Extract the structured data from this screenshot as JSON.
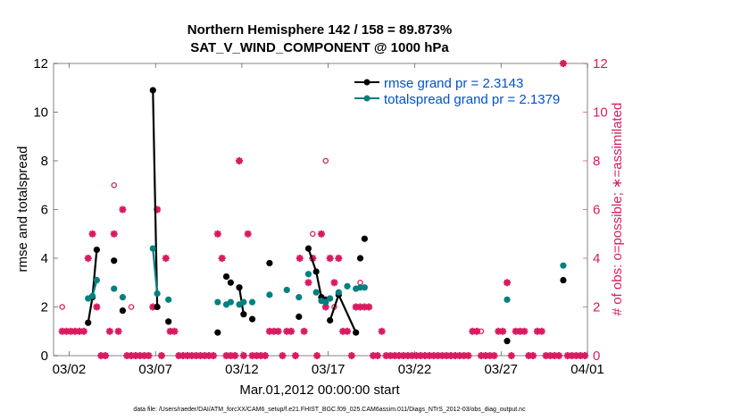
{
  "chart_data": {
    "type": "line",
    "title_line1": "Northern Hemisphere 142 / 158 = 89.873%",
    "title_line2": "SAT_V_WIND_COMPONENT @ 1000 hPa",
    "xlabel": "Mar.01,2012 00:00:00 start",
    "ylabel_left": "rmse and totalspread",
    "ylabel_right": "# of obs: o=possible; ∗=assimilated",
    "footer": "data file: /Users/raeder/DAI/ATM_forcXX/CAM6_setup/f.e21.FHIST_BGC.f09_025.CAM6assim.011/Diags_NTrS_2012-03/obs_diag_output.nc",
    "x_range_days": [
      1.1,
      32.0
    ],
    "ylim": [
      0,
      12
    ],
    "x_ticks": [
      {
        "day": 2,
        "label": "03/02"
      },
      {
        "day": 7,
        "label": "03/07"
      },
      {
        "day": 12,
        "label": "03/12"
      },
      {
        "day": 17,
        "label": "03/17"
      },
      {
        "day": 22,
        "label": "03/22"
      },
      {
        "day": 27,
        "label": "03/27"
      },
      {
        "day": 32,
        "label": "04/01"
      }
    ],
    "y_ticks_left": [
      "0",
      "2",
      "4",
      "6",
      "8",
      "10",
      "12"
    ],
    "y_ticks_right": [
      "0",
      "2",
      "4",
      "6",
      "8",
      "10",
      "12"
    ],
    "colors": {
      "rmse": "#000000",
      "spread": "#008080",
      "obs": "#d81b60",
      "legend_text": "#0052cc"
    },
    "series": [
      {
        "name": "rmse grand pr = 2.3143",
        "key": "rmse",
        "points": [
          [
            3.1,
            1.35
          ],
          [
            3.35,
            2.4
          ],
          [
            3.6,
            4.35
          ],
          [
            4.6,
            3.9
          ],
          [
            5.1,
            1.85
          ],
          [
            6.85,
            10.9
          ],
          [
            7.1,
            2.0
          ],
          [
            7.75,
            1.4
          ],
          [
            10.6,
            0.95
          ],
          [
            11.1,
            3.25
          ],
          [
            11.35,
            3.0
          ],
          [
            11.85,
            2.8
          ],
          [
            12.1,
            1.7
          ],
          [
            12.6,
            1.5
          ],
          [
            13.6,
            3.8
          ],
          [
            15.3,
            1.6
          ],
          [
            15.85,
            4.4
          ],
          [
            16.3,
            3.45
          ],
          [
            16.6,
            2.4
          ],
          [
            16.85,
            2.3
          ],
          [
            17.1,
            1.45
          ],
          [
            17.6,
            2.5
          ],
          [
            18.6,
            0.95
          ],
          [
            18.85,
            4.0
          ],
          [
            19.1,
            4.8
          ],
          [
            27.35,
            0.6
          ],
          [
            30.6,
            3.1
          ]
        ],
        "segments": [
          [
            0,
            1,
            2
          ],
          [
            5,
            6
          ],
          [
            11,
            12
          ],
          [
            16,
            17,
            18
          ],
          [
            20,
            21,
            22
          ]
        ]
      },
      {
        "name": "totalspread grand pr = 2.1379",
        "key": "spread",
        "points": [
          [
            3.1,
            2.35
          ],
          [
            3.35,
            2.45
          ],
          [
            3.6,
            3.1
          ],
          [
            4.6,
            2.75
          ],
          [
            5.1,
            2.4
          ],
          [
            6.85,
            4.4
          ],
          [
            7.1,
            2.55
          ],
          [
            7.75,
            2.3
          ],
          [
            10.6,
            2.2
          ],
          [
            11.1,
            2.1
          ],
          [
            11.35,
            2.2
          ],
          [
            11.85,
            2.1
          ],
          [
            12.1,
            2.2
          ],
          [
            12.6,
            2.2
          ],
          [
            13.6,
            2.5
          ],
          [
            14.6,
            2.7
          ],
          [
            15.3,
            2.4
          ],
          [
            15.85,
            3.35
          ],
          [
            16.3,
            2.6
          ],
          [
            16.6,
            2.25
          ],
          [
            16.85,
            2.2
          ],
          [
            17.1,
            2.35
          ],
          [
            17.6,
            2.6
          ],
          [
            18.1,
            2.85
          ],
          [
            18.6,
            2.75
          ],
          [
            18.85,
            2.8
          ],
          [
            19.1,
            2.8
          ],
          [
            27.35,
            2.3
          ],
          [
            30.6,
            3.7
          ]
        ],
        "segments": [
          [
            0,
            1,
            2
          ],
          [
            5,
            6
          ],
          [
            11,
            12
          ],
          [
            19,
            20,
            21
          ],
          [
            24,
            25,
            26
          ]
        ]
      }
    ],
    "obs_assimilated": [
      [
        1.6,
        1
      ],
      [
        1.85,
        1
      ],
      [
        2.1,
        1
      ],
      [
        2.35,
        1
      ],
      [
        2.6,
        1
      ],
      [
        2.85,
        1
      ],
      [
        3.1,
        4
      ],
      [
        3.35,
        5
      ],
      [
        3.6,
        2
      ],
      [
        3.85,
        0
      ],
      [
        4.1,
        0
      ],
      [
        4.35,
        1
      ],
      [
        4.6,
        5
      ],
      [
        4.85,
        1
      ],
      [
        5.1,
        6
      ],
      [
        5.35,
        0
      ],
      [
        5.6,
        0
      ],
      [
        5.85,
        0
      ],
      [
        6.1,
        0
      ],
      [
        6.35,
        0
      ],
      [
        6.6,
        0
      ],
      [
        6.85,
        2
      ],
      [
        7.1,
        6
      ],
      [
        7.35,
        0
      ],
      [
        7.6,
        4
      ],
      [
        7.85,
        1
      ],
      [
        8.1,
        1
      ],
      [
        8.35,
        0
      ],
      [
        8.6,
        0
      ],
      [
        8.85,
        0
      ],
      [
        9.1,
        0
      ],
      [
        9.35,
        0
      ],
      [
        9.6,
        0
      ],
      [
        9.85,
        0
      ],
      [
        10.1,
        0
      ],
      [
        10.35,
        0
      ],
      [
        10.6,
        5
      ],
      [
        10.85,
        4
      ],
      [
        11.1,
        0
      ],
      [
        11.35,
        0
      ],
      [
        11.6,
        0
      ],
      [
        11.85,
        8
      ],
      [
        12.1,
        0
      ],
      [
        12.35,
        5
      ],
      [
        12.6,
        0
      ],
      [
        12.85,
        0
      ],
      [
        13.1,
        0
      ],
      [
        13.35,
        0
      ],
      [
        13.6,
        1
      ],
      [
        13.85,
        1
      ],
      [
        14.1,
        1
      ],
      [
        14.35,
        0
      ],
      [
        14.6,
        1
      ],
      [
        14.85,
        1
      ],
      [
        15.1,
        0
      ],
      [
        15.35,
        4
      ],
      [
        15.6,
        1
      ],
      [
        15.85,
        3
      ],
      [
        16.1,
        4
      ],
      [
        16.35,
        0
      ],
      [
        16.6,
        5
      ],
      [
        16.85,
        2
      ],
      [
        17.1,
        4
      ],
      [
        17.35,
        3
      ],
      [
        17.6,
        4
      ],
      [
        17.85,
        1
      ],
      [
        18.1,
        1
      ],
      [
        18.35,
        0
      ],
      [
        18.6,
        2
      ],
      [
        18.85,
        2
      ],
      [
        19.1,
        2
      ],
      [
        19.35,
        2
      ],
      [
        19.6,
        0
      ],
      [
        19.85,
        0
      ],
      [
        20.1,
        1
      ],
      [
        20.35,
        0
      ],
      [
        20.6,
        0
      ],
      [
        20.85,
        0
      ],
      [
        21.1,
        0
      ],
      [
        21.35,
        0
      ],
      [
        21.6,
        0
      ],
      [
        21.85,
        0
      ],
      [
        22.1,
        0
      ],
      [
        22.35,
        0
      ],
      [
        22.6,
        0
      ],
      [
        22.85,
        0
      ],
      [
        23.1,
        0
      ],
      [
        23.35,
        0
      ],
      [
        23.6,
        0
      ],
      [
        23.85,
        0
      ],
      [
        24.1,
        0
      ],
      [
        24.35,
        0
      ],
      [
        24.6,
        0
      ],
      [
        24.85,
        0
      ],
      [
        25.1,
        0
      ],
      [
        25.35,
        1
      ],
      [
        25.6,
        1
      ],
      [
        25.85,
        0
      ],
      [
        26.1,
        0
      ],
      [
        26.35,
        0
      ],
      [
        26.6,
        0
      ],
      [
        26.85,
        1
      ],
      [
        27.1,
        1
      ],
      [
        27.35,
        3
      ],
      [
        27.6,
        0
      ],
      [
        27.85,
        1
      ],
      [
        28.1,
        1
      ],
      [
        28.35,
        1
      ],
      [
        28.6,
        0
      ],
      [
        28.85,
        0
      ],
      [
        29.1,
        1
      ],
      [
        29.35,
        1
      ],
      [
        29.6,
        0
      ],
      [
        29.85,
        0
      ],
      [
        30.1,
        0
      ],
      [
        30.35,
        0
      ],
      [
        30.6,
        12
      ],
      [
        30.85,
        0
      ],
      [
        31.1,
        0
      ],
      [
        31.35,
        0
      ],
      [
        31.6,
        0
      ],
      [
        31.85,
        0
      ]
    ],
    "obs_possible": [
      [
        1.6,
        2
      ],
      [
        4.6,
        7
      ],
      [
        5.6,
        2
      ],
      [
        7.1,
        6
      ],
      [
        16.1,
        5
      ],
      [
        16.85,
        8
      ],
      [
        17.35,
        2
      ],
      [
        18.85,
        3
      ],
      [
        25.85,
        1
      ],
      [
        27.35,
        3
      ],
      [
        28.1,
        1
      ]
    ]
  }
}
